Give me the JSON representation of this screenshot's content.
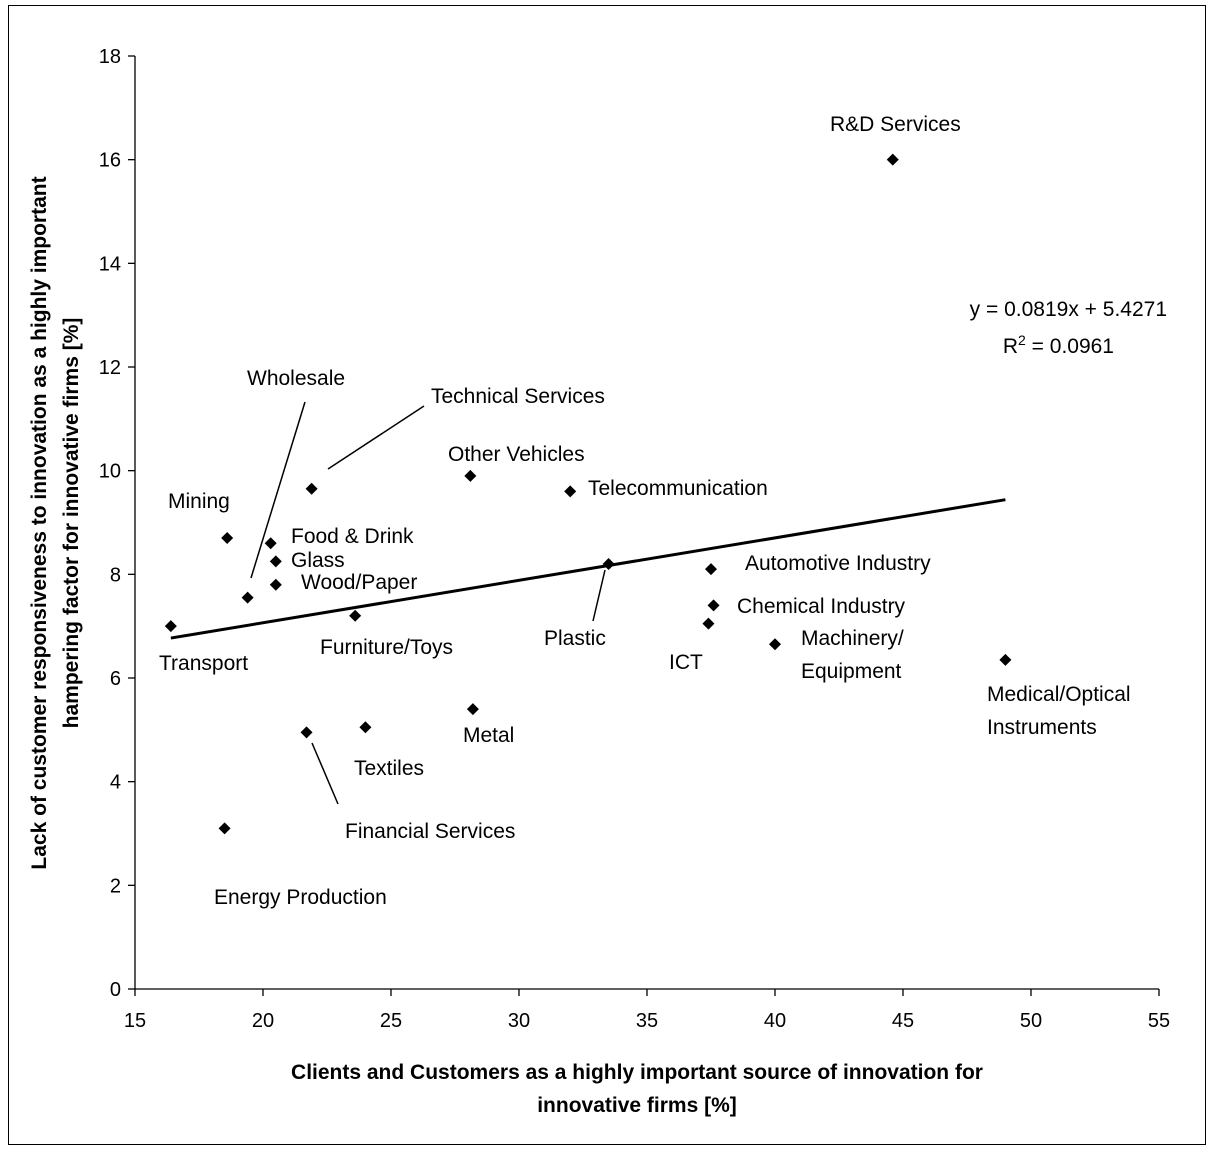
{
  "chart_data": {
    "type": "scatter",
    "title": "",
    "xlabel_lines": [
      "Clients and Customers as a highly important source of innovation for",
      "innovative firms [%]"
    ],
    "ylabel_lines": [
      "Lack of customer responsiveness to innovation as a highly important",
      "hampering factor for innovative firms [%]"
    ],
    "xlim": [
      15,
      55
    ],
    "ylim": [
      0,
      18
    ],
    "xticks": [
      "15",
      "20",
      "25",
      "30",
      "35",
      "40",
      "45",
      "50",
      "55"
    ],
    "yticks": [
      "0",
      "2",
      "4",
      "6",
      "8",
      "10",
      "12",
      "14",
      "16",
      "18"
    ],
    "grid": false,
    "legend": "none",
    "marker_color": "#000000",
    "points": [
      {
        "label": "R&D Services",
        "x": 44.6,
        "y": 16.0
      },
      {
        "label": "Technical Services",
        "x": 21.9,
        "y": 9.65
      },
      {
        "label": "Other Vehicles",
        "x": 28.1,
        "y": 9.9
      },
      {
        "label": "Telecommunication",
        "x": 32.0,
        "y": 9.6
      },
      {
        "label": "Mining",
        "x": 18.6,
        "y": 8.7
      },
      {
        "label": "Food & Drink",
        "x": 20.3,
        "y": 8.6
      },
      {
        "label": "Glass",
        "x": 20.5,
        "y": 8.25
      },
      {
        "label": "Wood/Paper",
        "x": 20.5,
        "y": 7.8
      },
      {
        "label": "Wholesale",
        "x": 19.4,
        "y": 7.55
      },
      {
        "label": "Transport",
        "x": 16.4,
        "y": 7.0
      },
      {
        "label": "Furniture/Toys",
        "x": 23.6,
        "y": 7.2
      },
      {
        "label": "Plastic",
        "x": 33.5,
        "y": 8.2
      },
      {
        "label": "Automotive Industry",
        "x": 37.5,
        "y": 8.1
      },
      {
        "label": "Chemical Industry",
        "x": 37.6,
        "y": 7.4
      },
      {
        "label": "ICT",
        "x": 37.4,
        "y": 7.05
      },
      {
        "label": "Machinery/ Equipment",
        "x": 40.0,
        "y": 6.65
      },
      {
        "label": "Medical/Optical Instruments",
        "x": 49.0,
        "y": 6.35
      },
      {
        "label": "Metal",
        "x": 28.2,
        "y": 5.4
      },
      {
        "label": "Textiles",
        "x": 24.0,
        "y": 5.05
      },
      {
        "label": "Financial Services",
        "x": 21.7,
        "y": 4.95
      },
      {
        "label": "Energy Production",
        "x": 18.5,
        "y": 3.1
      }
    ],
    "trendline": {
      "slope": 0.0819,
      "intercept": 5.4271,
      "x_range": [
        16.4,
        49.0
      ],
      "equation": "y = 0.0819x + 5.4271",
      "r2_prefix": "R",
      "r2_sup": "2",
      "r2_value": " = 0.0961"
    }
  }
}
